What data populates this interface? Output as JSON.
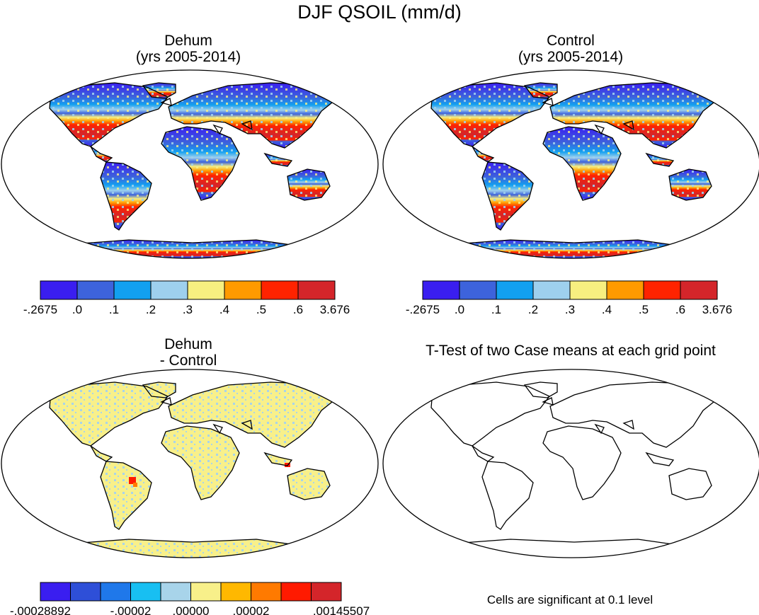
{
  "title": "DJF QSOIL (mm/d)",
  "panels": [
    {
      "name": "Dehum",
      "period": "(yrs 2005-2014)"
    },
    {
      "name": "Control",
      "period": "(yrs 2005-2014)"
    },
    {
      "name": "Dehum",
      "period": "- Control"
    },
    {
      "name": "T-Test of two Case means at each grid point",
      "period": ""
    }
  ],
  "colorbar_top": {
    "colors": [
      "#3a1ef0",
      "#3d63dc",
      "#12a0f0",
      "#9ed0ee",
      "#f7ef80",
      "#ff9a00",
      "#ff2300",
      "#d4252a"
    ],
    "labels": [
      "-.2675",
      ".0",
      ".1",
      ".2",
      ".3",
      ".4",
      ".5",
      ".6",
      "3.676"
    ]
  },
  "colorbar_bottom": {
    "colors": [
      "#3a1ef0",
      "#2e4fd8",
      "#1f78ea",
      "#18bff2",
      "#a8d4ea",
      "#f8f08a",
      "#ffb800",
      "#ff7a00",
      "#ff1a00",
      "#d4252a"
    ],
    "labels": [
      "-.00028892",
      "-.00002",
      ".00000",
      ".00002",
      ".00145507"
    ]
  },
  "significance_note": "Cells are significant at 0.1 level"
}
